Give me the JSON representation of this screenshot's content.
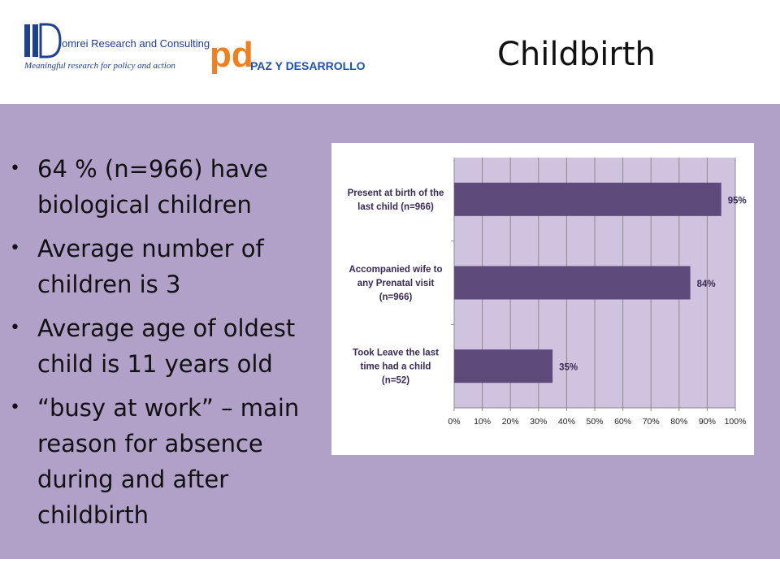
{
  "slide": {
    "title": "Childbirth",
    "bullets": [
      "64 % (n=966) have biological children",
      "Average number of children is 3",
      "Average age of oldest child is 11 years old",
      "“busy at work” – main reason for absence during and after childbirth"
    ]
  },
  "logos": {
    "domrei_name": "omrei Research and Consulting",
    "domrei_tagline": "Meaningful research for policy and action",
    "pd_name": "PAZ Y DESARROLLO",
    "pd_letters": "pd"
  },
  "colors": {
    "panel": "#b1a0c8",
    "plot_bg": "#d0c3e0",
    "bar": "#5e4a7b",
    "orange": "#f07f20",
    "blue": "#1f4fa8"
  },
  "chart_data": {
    "type": "bar",
    "orientation": "horizontal",
    "categories": [
      [
        "Present at birth of the",
        "last child (n=966)"
      ],
      [
        "Accompanied wife to",
        "any Prenatal visit",
        "(n=966)"
      ],
      [
        "Took Leave the last",
        "time had a child",
        "(n=52)"
      ]
    ],
    "values": [
      95,
      84,
      35
    ],
    "data_labels": [
      "95%",
      "84%",
      "35%"
    ],
    "xlim": [
      0,
      100
    ],
    "xticks": [
      "0%",
      "10%",
      "20%",
      "30%",
      "40%",
      "50%",
      "60%",
      "70%",
      "80%",
      "90%",
      "100%"
    ],
    "grid": true,
    "title": "",
    "xlabel": "",
    "ylabel": ""
  }
}
